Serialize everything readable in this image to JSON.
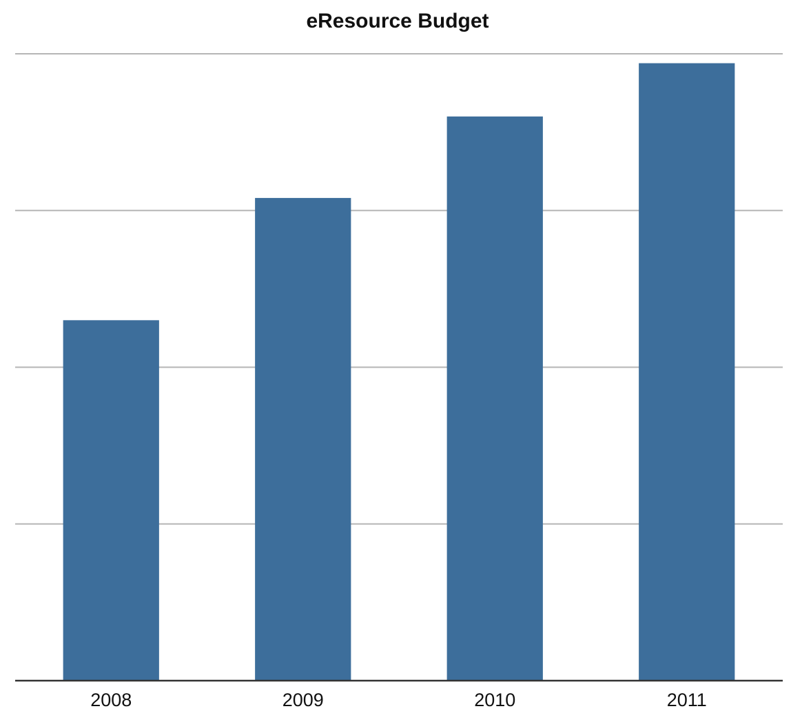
{
  "chart_data": {
    "type": "bar",
    "title": "eResource Budget",
    "xlabel": "",
    "ylabel": "",
    "categories": [
      "2008",
      "2009",
      "2010",
      "2011"
    ],
    "values": [
      2.3,
      3.08,
      3.6,
      3.94
    ],
    "ylim": [
      0,
      4
    ],
    "y_gridlines": [
      1,
      2,
      3,
      4
    ],
    "grid": true,
    "y_tick_labels_shown": false,
    "legend": "none",
    "bar_color": "#3d6e9b",
    "grid_color": "#b5b5b5",
    "axis_color": "#333333"
  }
}
